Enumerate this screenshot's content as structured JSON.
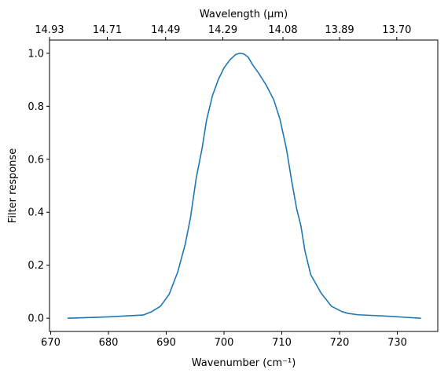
{
  "chart_data": {
    "type": "line",
    "xlabel": "Wavenumber (cm⁻¹)",
    "ylabel": "Filter response",
    "top_xlabel": "Wavelength (μm)",
    "xlim": [
      669.8,
      737
    ],
    "ylim": [
      -0.05,
      1.05
    ],
    "x_ticks": [
      670,
      680,
      690,
      700,
      710,
      720,
      730
    ],
    "y_ticks": [
      0.0,
      0.2,
      0.4,
      0.6,
      0.8,
      1.0
    ],
    "top_ticks": [
      {
        "label": "14.93",
        "x": 669.8
      },
      {
        "label": "14.71",
        "x": 679.8
      },
      {
        "label": "14.49",
        "x": 689.9
      },
      {
        "label": "14.29",
        "x": 699.8
      },
      {
        "label": "14.08",
        "x": 710.2
      },
      {
        "label": "13.89",
        "x": 720.0
      },
      {
        "label": "13.70",
        "x": 729.9
      }
    ],
    "grid": false,
    "series": [
      {
        "color": "#1f77b4",
        "x": [
          673,
          680,
          686,
          687.5,
          689,
          690.5,
          692,
          693.3,
          694.2,
          695.2,
          696.2,
          697,
          698,
          699,
          700,
          701,
          702,
          702.7,
          703.4,
          704.2,
          705,
          706,
          707.3,
          708.6,
          709.7,
          710.8,
          711.7,
          712.6,
          713.3,
          714,
          715,
          716.8,
          718.6,
          720.4,
          721.5,
          723.2,
          728,
          734
        ],
        "y": [
          0.0,
          0.005,
          0.012,
          0.025,
          0.045,
          0.09,
          0.175,
          0.28,
          0.38,
          0.53,
          0.64,
          0.75,
          0.84,
          0.9,
          0.945,
          0.975,
          0.995,
          1.0,
          0.998,
          0.985,
          0.955,
          0.925,
          0.88,
          0.825,
          0.75,
          0.64,
          0.52,
          0.41,
          0.35,
          0.255,
          0.165,
          0.095,
          0.045,
          0.025,
          0.018,
          0.013,
          0.008,
          0.0
        ]
      }
    ]
  }
}
